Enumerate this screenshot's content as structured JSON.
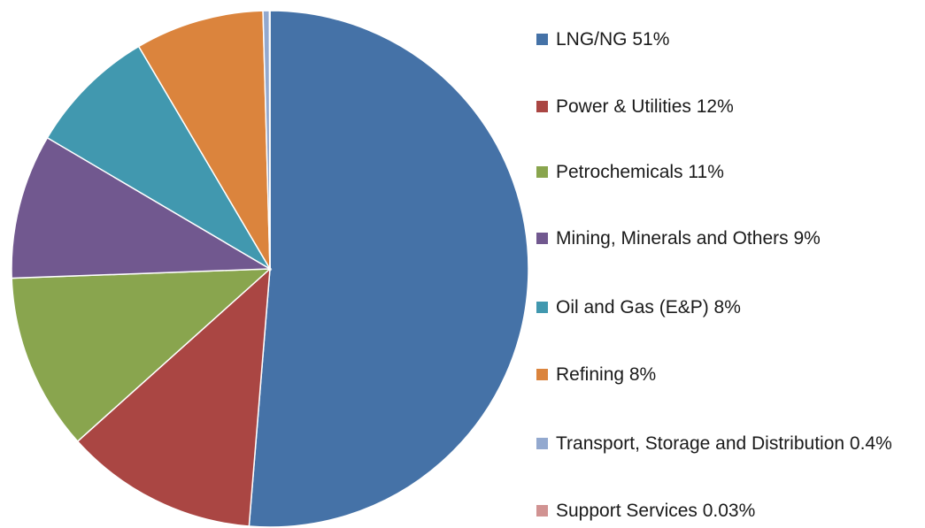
{
  "chart_data": {
    "type": "pie",
    "categories": [
      "LNG/NG 51%",
      "Power & Utilities 12%",
      "Petrochemicals 11%",
      "Mining, Minerals and Others 9%",
      "Oil and Gas (E&P) 8%",
      "Refining 8%",
      "Transport, Storage and Distribution 0.4%",
      "Support Services 0.03%"
    ],
    "values": [
      51,
      12,
      11,
      9,
      8,
      8,
      0.4,
      0.03
    ],
    "colors": [
      "#4572a7",
      "#aa4643",
      "#89a54e",
      "#71588f",
      "#4198af",
      "#db843d",
      "#93a9cf",
      "#d19392"
    ],
    "legend": "right"
  }
}
